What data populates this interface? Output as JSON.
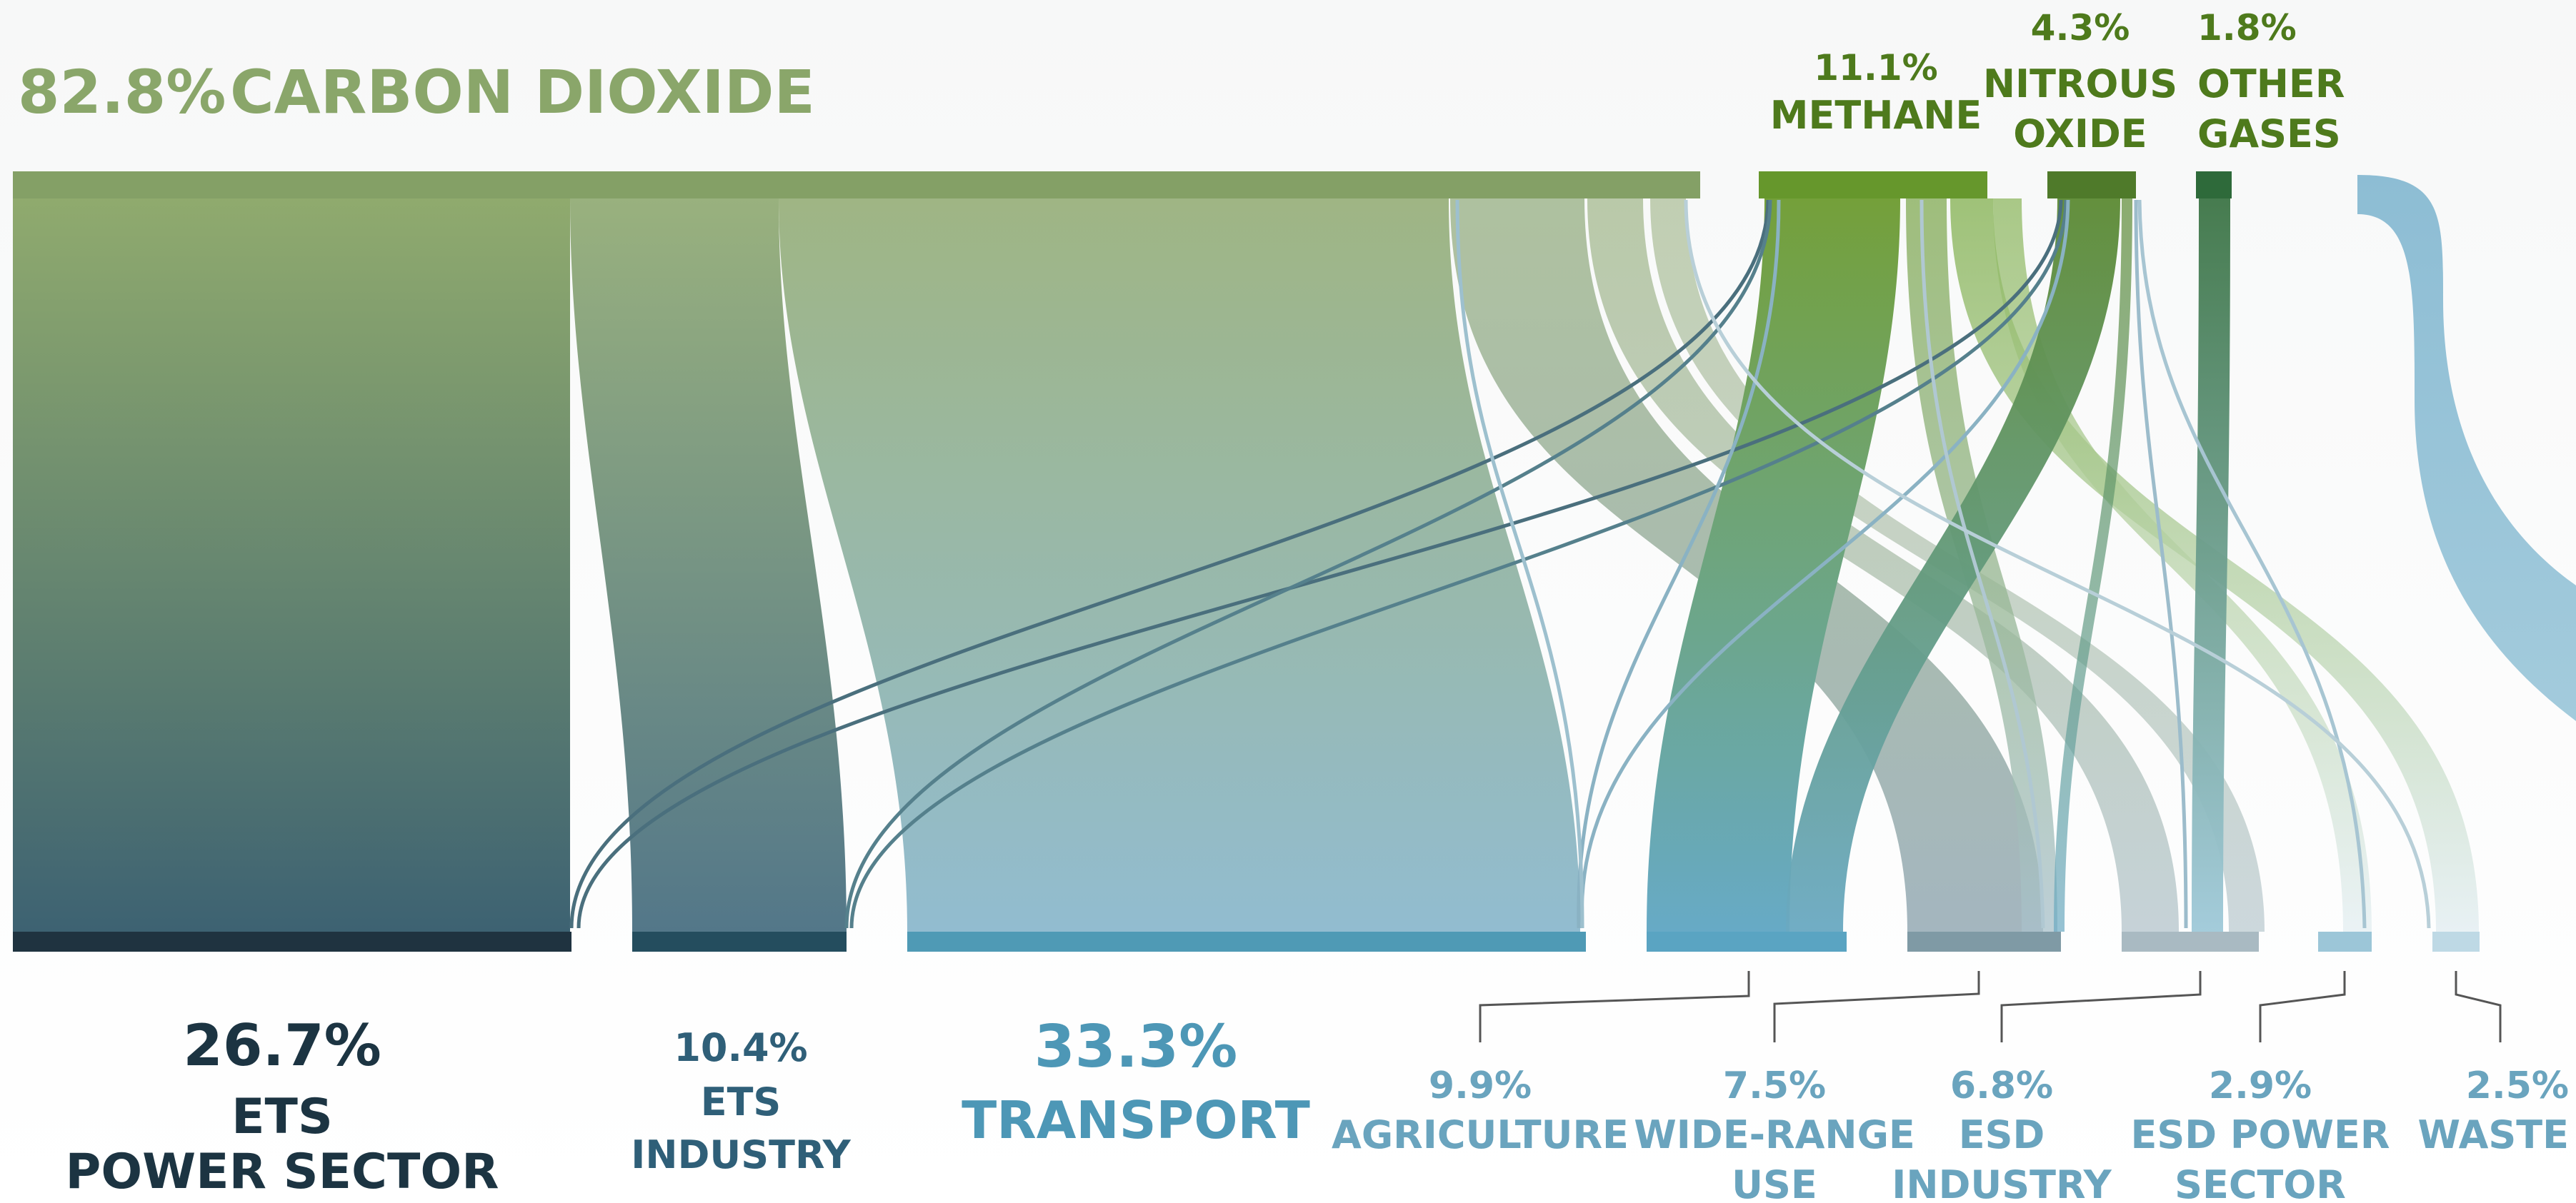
{
  "chart_data": {
    "type": "sankey",
    "title": "",
    "unit": "%",
    "sources": [
      {
        "id": "co2",
        "value": "82.8%",
        "label": "CARBON DIOXIDE",
        "share": 82.8,
        "color": "#84a066"
      },
      {
        "id": "ch4",
        "value": "11.1%",
        "label": "METHANE",
        "share": 11.1,
        "color": "#6a9a30"
      },
      {
        "id": "n2o",
        "value": "4.3%",
        "label_lines": [
          "NITROUS",
          "OXIDE"
        ],
        "share": 4.3,
        "color": "#4f7a2a"
      },
      {
        "id": "other",
        "value": "1.8%",
        "label_lines": [
          "OTHER",
          "GASES"
        ],
        "share": 1.8,
        "color": "#2e6a3a"
      }
    ],
    "sectors": [
      {
        "id": "ets_power",
        "value": "26.7%",
        "label_lines": [
          "ETS",
          "POWER SECTOR"
        ],
        "share": 26.7,
        "color": "#1f3340"
      },
      {
        "id": "ets_industry",
        "value": "10.4%",
        "label_lines": [
          "ETS",
          "INDUSTRY"
        ],
        "share": 10.4,
        "color": "#244d5e"
      },
      {
        "id": "transport",
        "value": "33.3%",
        "label_lines": [
          "TRANSPORT"
        ],
        "share": 33.3,
        "color": "#4f9ab5"
      },
      {
        "id": "agriculture",
        "value": "9.9%",
        "label_lines": [
          "AGRICULTURE"
        ],
        "share": 9.9,
        "color": "#5aa4c2"
      },
      {
        "id": "wide_range",
        "value": "7.5%",
        "label_lines": [
          "WIDE-RANGE",
          "USE"
        ],
        "share": 7.5,
        "color": "#7f9aa5"
      },
      {
        "id": "esd_industry",
        "value": "6.8%",
        "label_lines": [
          "ESD",
          "INDUSTRY"
        ],
        "share": 6.8,
        "color": "#a9bac2"
      },
      {
        "id": "esd_power",
        "value": "2.9%",
        "label_lines": [
          "ESD POWER",
          "SECTOR"
        ],
        "share": 2.9,
        "color": "#9cc6d8"
      },
      {
        "id": "waste",
        "value": "2.5%",
        "label_lines": [
          "WASTE"
        ],
        "share": 2.5,
        "color": "#bed9e5"
      }
    ],
    "colors": {
      "co2_text": "#8aa66a",
      "gas_text": "#4e7a1c",
      "sector_text_dark": "#1c3442",
      "sector_text_mid": "#2f5f78",
      "sector_text_light": "#5d9ab8",
      "leader_line": "#555555"
    }
  }
}
